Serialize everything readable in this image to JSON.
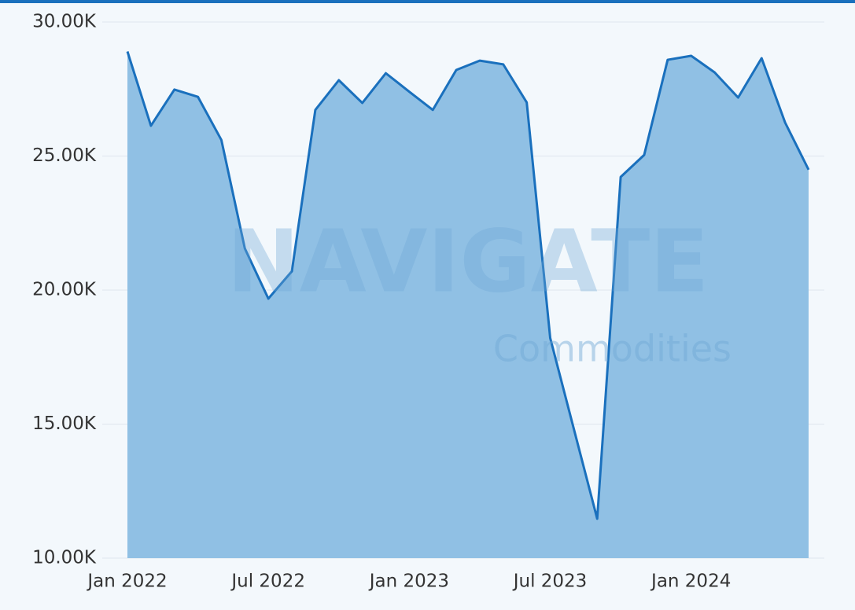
{
  "chart_data": {
    "type": "area",
    "watermark": {
      "title": "NAVIGATE",
      "subtitle": "Commodities"
    },
    "categories": [
      "Jan 2022",
      null,
      null,
      null,
      null,
      null,
      "Jul 2022",
      null,
      null,
      null,
      null,
      null,
      "Jan 2023",
      null,
      null,
      null,
      null,
      null,
      "Jul 2023",
      null,
      null,
      null,
      null,
      null,
      "Jan 2024",
      null,
      null,
      null,
      null,
      null
    ],
    "series": [
      {
        "color": "#1a70bd",
        "fill": "#90c0e4",
        "values": [
          28900,
          26130,
          27480,
          27210,
          25600,
          21550,
          19680,
          20700,
          26720,
          27830,
          26980,
          28090,
          27400,
          26720,
          28210,
          28560,
          28420,
          27000,
          18210,
          14840,
          11470,
          24220,
          25040,
          28590,
          28740,
          28120,
          27180,
          28650,
          26250,
          24490
        ]
      }
    ],
    "ylim": [
      10000,
      30000
    ],
    "yticks": [
      {
        "value": 10000,
        "label": "10.00K"
      },
      {
        "value": 15000,
        "label": "15.00K"
      },
      {
        "value": 20000,
        "label": "20.00K"
      },
      {
        "value": 25000,
        "label": "25.00K"
      },
      {
        "value": 30000,
        "label": "30.00K"
      }
    ],
    "grid": true
  }
}
